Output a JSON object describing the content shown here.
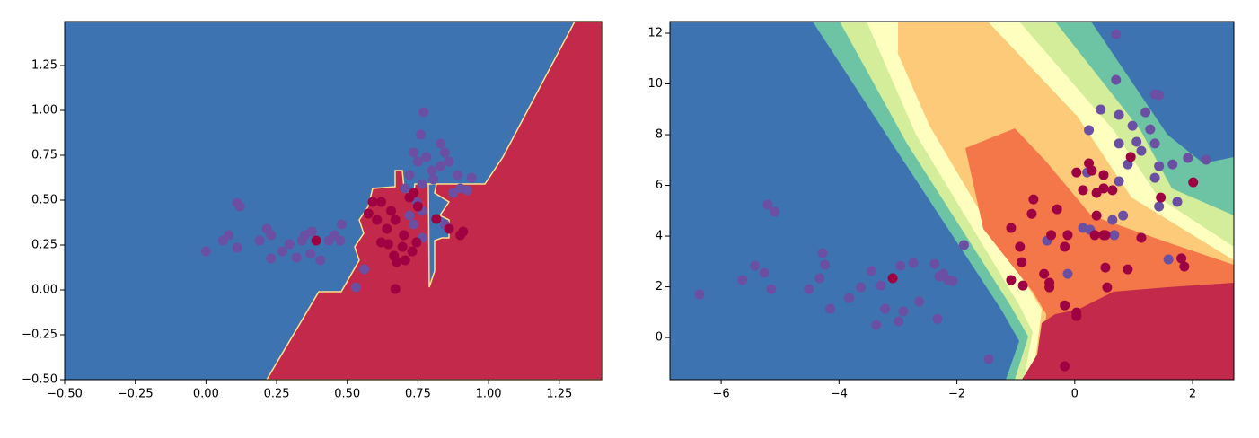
{
  "chart_data": [
    {
      "type": "scatter",
      "xlim": [
        -0.5,
        1.4
      ],
      "ylim": [
        -0.5,
        1.495
      ],
      "xticks": [
        {
          "value": -0.5,
          "label": "−0.50"
        },
        {
          "value": -0.25,
          "label": "−0.25"
        },
        {
          "value": 0,
          "label": "0.00"
        },
        {
          "value": 0.25,
          "label": "0.25"
        },
        {
          "value": 0.5,
          "label": "0.50"
        },
        {
          "value": 0.75,
          "label": "0.75"
        },
        {
          "value": 1,
          "label": "1.00"
        },
        {
          "value": 1.25,
          "label": "1.25"
        }
      ],
      "yticks": [
        {
          "value": -0.5,
          "label": "−0.50"
        },
        {
          "value": -0.25,
          "label": "−0.25"
        },
        {
          "value": 0,
          "label": "0.00"
        },
        {
          "value": 0.25,
          "label": "0.25"
        },
        {
          "value": 0.5,
          "label": "0.50"
        },
        {
          "value": 0.75,
          "label": "0.75"
        },
        {
          "value": 1,
          "label": "1.00"
        },
        {
          "value": 1.25,
          "label": "1.25"
        }
      ],
      "series": [
        {
          "color": "#6a4fa3",
          "x": [
            0.0,
            0.11,
            0.12,
            0.06,
            0.08,
            0.11,
            0.19,
            0.215,
            0.23,
            0.23,
            0.27,
            0.295,
            0.32,
            0.34,
            0.35,
            0.37,
            0.375,
            0.405,
            0.455,
            0.435,
            0.475,
            0.48,
            0.53,
            0.56,
            0.77,
            0.76,
            0.735,
            0.75,
            0.78,
            0.8,
            0.83,
            0.845,
            0.86,
            0.89,
            0.9,
            0.925,
            0.875,
            0.72,
            0.705,
            0.745,
            0.765,
            0.72,
            0.765,
            0.735,
            0.845,
            0.805,
            0.83,
            0.765,
            0.94
          ],
          "y": [
            0.215,
            0.485,
            0.465,
            0.275,
            0.305,
            0.235,
            0.275,
            0.34,
            0.305,
            0.175,
            0.215,
            0.255,
            0.18,
            0.275,
            0.305,
            0.2,
            0.325,
            0.165,
            0.305,
            0.275,
            0.275,
            0.365,
            0.015,
            0.115,
            0.99,
            0.865,
            0.765,
            0.715,
            0.74,
            0.665,
            0.815,
            0.765,
            0.715,
            0.64,
            0.565,
            0.555,
            0.54,
            0.64,
            0.565,
            0.49,
            0.44,
            0.415,
            0.29,
            0.365,
            0.365,
            0.615,
            0.69,
            0.59,
            0.625
          ]
        },
        {
          "color": "#9e0142",
          "x": [
            0.39,
            0.575,
            0.59,
            0.605,
            0.62,
            0.64,
            0.655,
            0.67,
            0.62,
            0.645,
            0.665,
            0.675,
            0.67,
            0.7,
            0.695,
            0.72,
            0.735,
            0.745,
            0.815,
            0.705,
            0.73,
            0.75,
            0.9,
            0.91,
            0.86
          ],
          "y": [
            0.275,
            0.425,
            0.49,
            0.39,
            0.49,
            0.34,
            0.44,
            0.39,
            0.265,
            0.255,
            0.19,
            0.155,
            0.005,
            0.305,
            0.24,
            0.515,
            0.54,
            0.265,
            0.395,
            0.165,
            0.215,
            0.465,
            0.305,
            0.325,
            0.34
          ]
        }
      ]
    },
    {
      "type": "scatter",
      "xlim": [
        -6.87,
        2.7
      ],
      "ylim": [
        -1.66,
        12.46
      ],
      "xticks": [
        {
          "value": -6,
          "label": "−6"
        },
        {
          "value": -4,
          "label": "−4"
        },
        {
          "value": -2,
          "label": "−2"
        },
        0,
        2
      ],
      "yticks": [
        0,
        2,
        4,
        6,
        8,
        10,
        12
      ],
      "series": [
        {
          "color": "#6a4fa3",
          "x": [
            -6.37,
            -5.64,
            -5.43,
            -5.27,
            -5.15,
            -5.21,
            -5.09,
            -4.51,
            -4.28,
            -4.24,
            -4.33,
            -4.15,
            -3.83,
            -3.63,
            -3.45,
            -3.29,
            -3.22,
            -3.37,
            -2.99,
            -2.91,
            -2.96,
            -2.74,
            -2.64,
            -2.38,
            -2.33,
            -2.23,
            -2.15,
            -2.3,
            -2.07,
            -1.88,
            -1.46,
            -0.47,
            -0.12,
            0.14,
            0.26,
            0.21,
            0.24,
            0.44,
            0.75,
            0.75,
            0.98,
            1.05,
            0.75,
            0.67,
            0.9,
            0.82,
            1.2,
            1.13,
            1.36,
            1.43,
            1.66,
            1.36,
            1.43,
            1.74,
            1.92,
            2.23,
            1.59,
            0.7,
            0.7,
            1.36,
            1.43,
            1.28,
            0.64
          ],
          "y": [
            1.7,
            2.27,
            2.83,
            2.55,
            1.91,
            5.24,
            4.96,
            1.91,
            3.33,
            2.87,
            2.34,
            1.13,
            1.56,
            1.98,
            2.62,
            2.05,
            1.13,
            0.5,
            0.64,
            1.03,
            2.83,
            2.94,
            1.42,
            2.9,
            0.74,
            2.51,
            2.27,
            2.41,
            2.23,
            3.65,
            -0.85,
            3.82,
            2.51,
            4.32,
            4.25,
            6.51,
            8.18,
            8.99,
            8.78,
            7.65,
            8.35,
            7.72,
            6.16,
            4.04,
            6.83,
            4.81,
            8.88,
            7.36,
            7.65,
            6.76,
            6.83,
            6.3,
            5.17,
            5.35,
            7.08,
            7.01,
            3.08,
            11.96,
            10.16,
            9.59,
            9.56,
            8.21,
            4.64
          ]
        },
        {
          "color": "#9e0142",
          "x": [
            -3.09,
            -1.08,
            -0.93,
            -0.9,
            -0.73,
            -0.7,
            -0.52,
            -0.43,
            -0.4,
            -0.3,
            -0.17,
            -0.12,
            -1.08,
            -0.88,
            -0.43,
            -0.17,
            0.03,
            0.03,
            -0.17,
            0.03,
            0.24,
            0.29,
            0.14,
            0.37,
            0.49,
            0.64,
            0.52,
            0.52,
            0.34,
            0.49,
            0.9,
            1.13,
            1.46,
            2.01,
            1.81,
            1.86,
            0.55,
            0.37,
            0.49,
            0.95
          ],
          "y": [
            2.34,
            4.32,
            3.58,
            2.97,
            4.88,
            5.45,
            2.51,
            2.16,
            4.04,
            5.06,
            3.58,
            4.04,
            2.27,
            2.05,
            1.98,
            1.27,
            0.99,
            0.85,
            -1.13,
            6.51,
            6.87,
            6.58,
            5.81,
            5.7,
            5.88,
            5.81,
            4.04,
            2.76,
            4.04,
            4.04,
            2.69,
            3.93,
            5.52,
            6.12,
            3.12,
            2.8,
            1.98,
            4.81,
            6.41,
            7.12
          ]
        }
      ]
    }
  ]
}
